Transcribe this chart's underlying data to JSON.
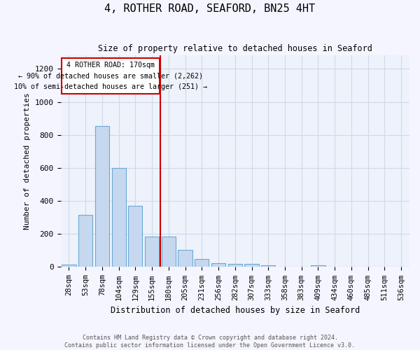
{
  "title": "4, ROTHER ROAD, SEAFORD, BN25 4HT",
  "subtitle": "Size of property relative to detached houses in Seaford",
  "xlabel": "Distribution of detached houses by size in Seaford",
  "ylabel": "Number of detached properties",
  "categories": [
    "28sqm",
    "53sqm",
    "78sqm",
    "104sqm",
    "129sqm",
    "155sqm",
    "180sqm",
    "205sqm",
    "231sqm",
    "256sqm",
    "282sqm",
    "307sqm",
    "333sqm",
    "358sqm",
    "383sqm",
    "409sqm",
    "434sqm",
    "460sqm",
    "485sqm",
    "511sqm",
    "536sqm"
  ],
  "values": [
    15,
    315,
    855,
    600,
    370,
    185,
    185,
    105,
    48,
    22,
    20,
    20,
    10,
    0,
    0,
    10,
    0,
    0,
    0,
    0,
    0
  ],
  "bar_color": "#c5d8ef",
  "bar_edge_color": "#6aaad4",
  "vline_x": 5.5,
  "vline_color": "#cc0000",
  "annotation_line1": "4 ROTHER ROAD: 170sqm",
  "annotation_line2": "← 90% of detached houses are smaller (2,262)",
  "annotation_line3": "10% of semi-detached houses are larger (251) →",
  "annotation_box_color": "#cc0000",
  "ylim": [
    0,
    1280
  ],
  "yticks": [
    0,
    200,
    400,
    600,
    800,
    1000,
    1200
  ],
  "grid_color": "#d0d8e8",
  "bg_color": "#eef2fb",
  "fig_bg_color": "#f5f5ff",
  "footer1": "Contains HM Land Registry data © Crown copyright and database right 2024.",
  "footer2": "Contains public sector information licensed under the Open Government Licence v3.0."
}
